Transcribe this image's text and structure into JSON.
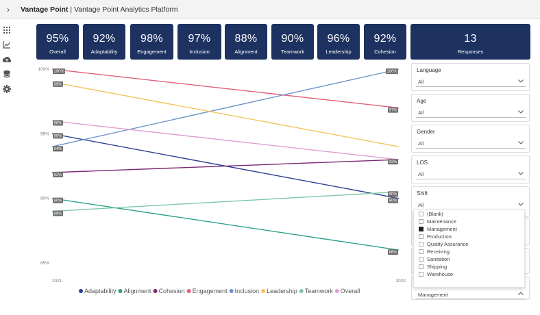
{
  "header": {
    "app_name": "Vantage Point",
    "separator": " | ",
    "subtitle": "Vantage Point Analytics Platform",
    "expand_icon": "chevron-right-icon"
  },
  "nav": {
    "icons": [
      "apps-grid-icon",
      "line-chart-icon",
      "cloud-upload-icon",
      "database-icon",
      "gear-icon"
    ]
  },
  "kpis": [
    {
      "value": "95%",
      "label": "Overall"
    },
    {
      "value": "92%",
      "label": "Adaptability"
    },
    {
      "value": "98%",
      "label": "Engagement"
    },
    {
      "value": "97%",
      "label": "Inclusion"
    },
    {
      "value": "88%",
      "label": "Alignment"
    },
    {
      "value": "90%",
      "label": "Teamwork"
    },
    {
      "value": "96%",
      "label": "Leadership"
    },
    {
      "value": "92%",
      "label": "Cohesion"
    },
    {
      "value": "13",
      "label": "Responses"
    }
  ],
  "colors": {
    "card_bg": "#1d3260",
    "label_bg": "#6b6b6b"
  },
  "chart_data": {
    "type": "line",
    "x": [
      "2021",
      "2022"
    ],
    "ylim": [
      85,
      100
    ],
    "yticks": [
      85,
      90,
      95,
      100
    ],
    "ytick_labels": [
      "85%",
      "90%",
      "95%",
      "100%"
    ],
    "series": [
      {
        "name": "Adaptability",
        "color": "#2b3f94",
        "values": [
          95,
          90
        ],
        "labels": [
          "95%",
          "90%"
        ]
      },
      {
        "name": "Alignment",
        "color": "#2ea08a",
        "values": [
          90,
          86
        ],
        "labels": [
          "90%",
          "86%"
        ]
      },
      {
        "name": "Cohesion",
        "color": "#7b2775",
        "values": [
          92,
          93
        ],
        "labels": [
          "92%",
          ""
        ]
      },
      {
        "name": "Engagement",
        "color": "#e0607a",
        "values": [
          100,
          97
        ],
        "labels": [
          "100%",
          "97%"
        ]
      },
      {
        "name": "Inclusion",
        "color": "#6c94c8",
        "values": [
          94,
          100
        ],
        "labels": [
          "94%",
          "100%"
        ]
      },
      {
        "name": "Leadership",
        "color": "#f1c55a",
        "values": [
          99,
          94
        ],
        "labels": [
          "99%",
          ""
        ]
      },
      {
        "name": "Teamwork",
        "color": "#7cc8a6",
        "values": [
          89,
          90.5
        ],
        "labels": [
          "89%",
          "90%"
        ]
      },
      {
        "name": "Overall",
        "color": "#dc9fd4",
        "values": [
          96,
          93
        ],
        "labels": [
          "96%",
          "93%"
        ]
      }
    ]
  },
  "filters": [
    {
      "title": "Language",
      "value": "All"
    },
    {
      "title": "Age",
      "value": "All"
    },
    {
      "title": "Gender",
      "value": "All"
    },
    {
      "title": "LOS",
      "value": "All"
    },
    {
      "title": "Shift",
      "value": "All"
    }
  ],
  "dropdown": {
    "options": [
      {
        "label": "(Blank)",
        "checked": false
      },
      {
        "label": "Maintenance",
        "checked": false
      },
      {
        "label": "Management",
        "checked": true
      },
      {
        "label": "Production",
        "checked": false
      },
      {
        "label": "Quality Assurance",
        "checked": false
      },
      {
        "label": "Receiving",
        "checked": false
      },
      {
        "label": "Sanitation",
        "checked": false
      },
      {
        "label": "Shipping",
        "checked": false
      },
      {
        "label": "Warehouse",
        "checked": false
      }
    ],
    "selected": "Management"
  }
}
